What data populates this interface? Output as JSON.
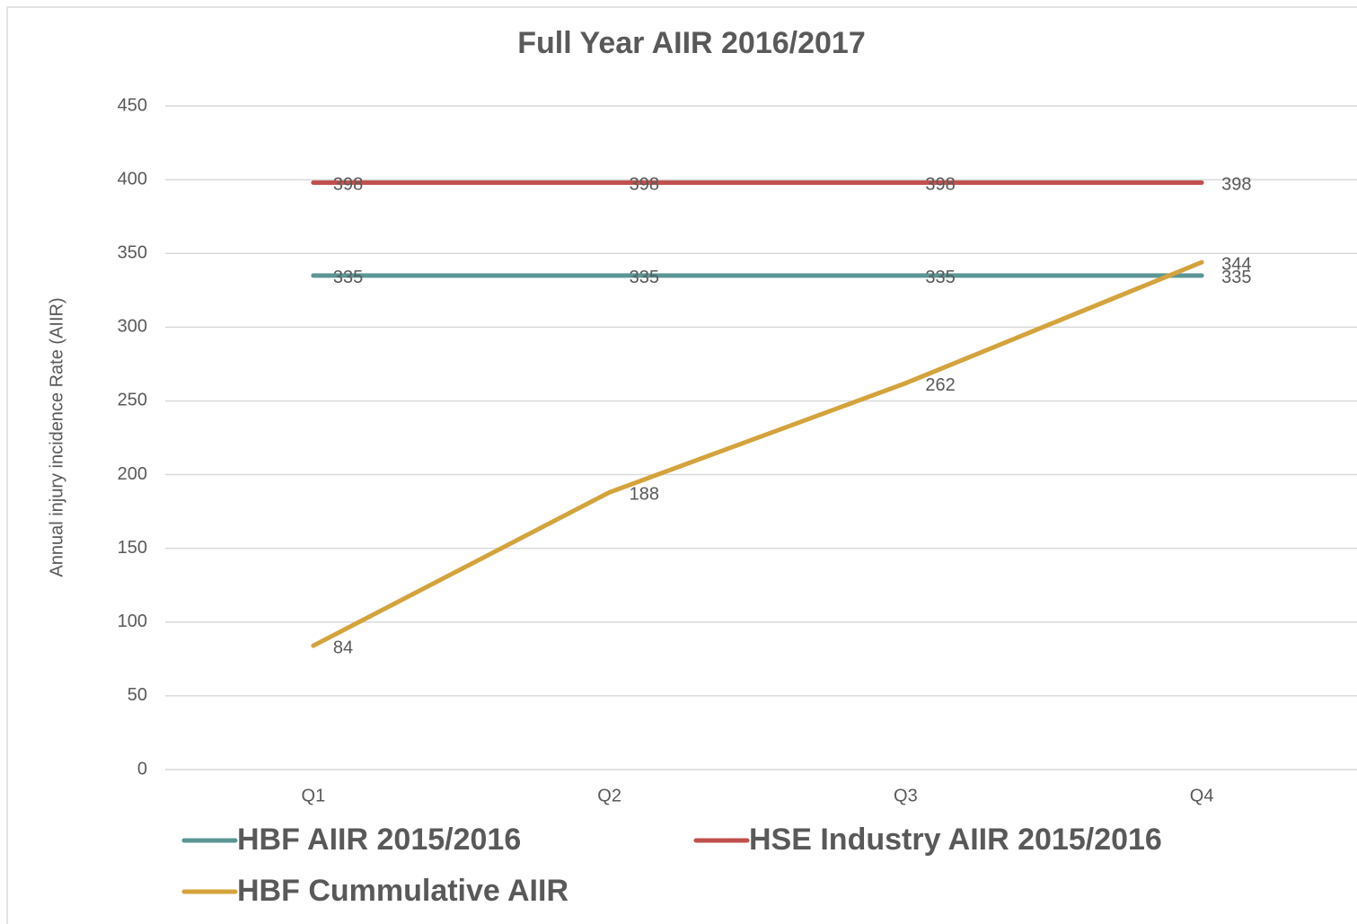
{
  "chart_data": {
    "type": "line",
    "title": "Full Year AIIR 2016/2017",
    "y_label": "Annual injury incidence Rate (AIIR)",
    "categories": [
      "Q1",
      "Q2",
      "Q3",
      "Q4"
    ],
    "series": [
      {
        "name": "HBF AIIR 2015/2016",
        "color": "#5b9595",
        "values": [
          335,
          335,
          335,
          335
        ]
      },
      {
        "name": "HSE Industry AIIR 2015/2016",
        "color": "#c0504d",
        "values": [
          398,
          398,
          398,
          398
        ]
      },
      {
        "name": "HBF Cummulative AIIR",
        "color": "#d4a33c",
        "values": [
          84,
          188,
          262,
          344
        ]
      }
    ],
    "ylim": [
      0,
      450
    ],
    "yticks": [
      0,
      50,
      100,
      150,
      200,
      250,
      300,
      350,
      400,
      450
    ],
    "grid": true,
    "legend": "bottom"
  }
}
